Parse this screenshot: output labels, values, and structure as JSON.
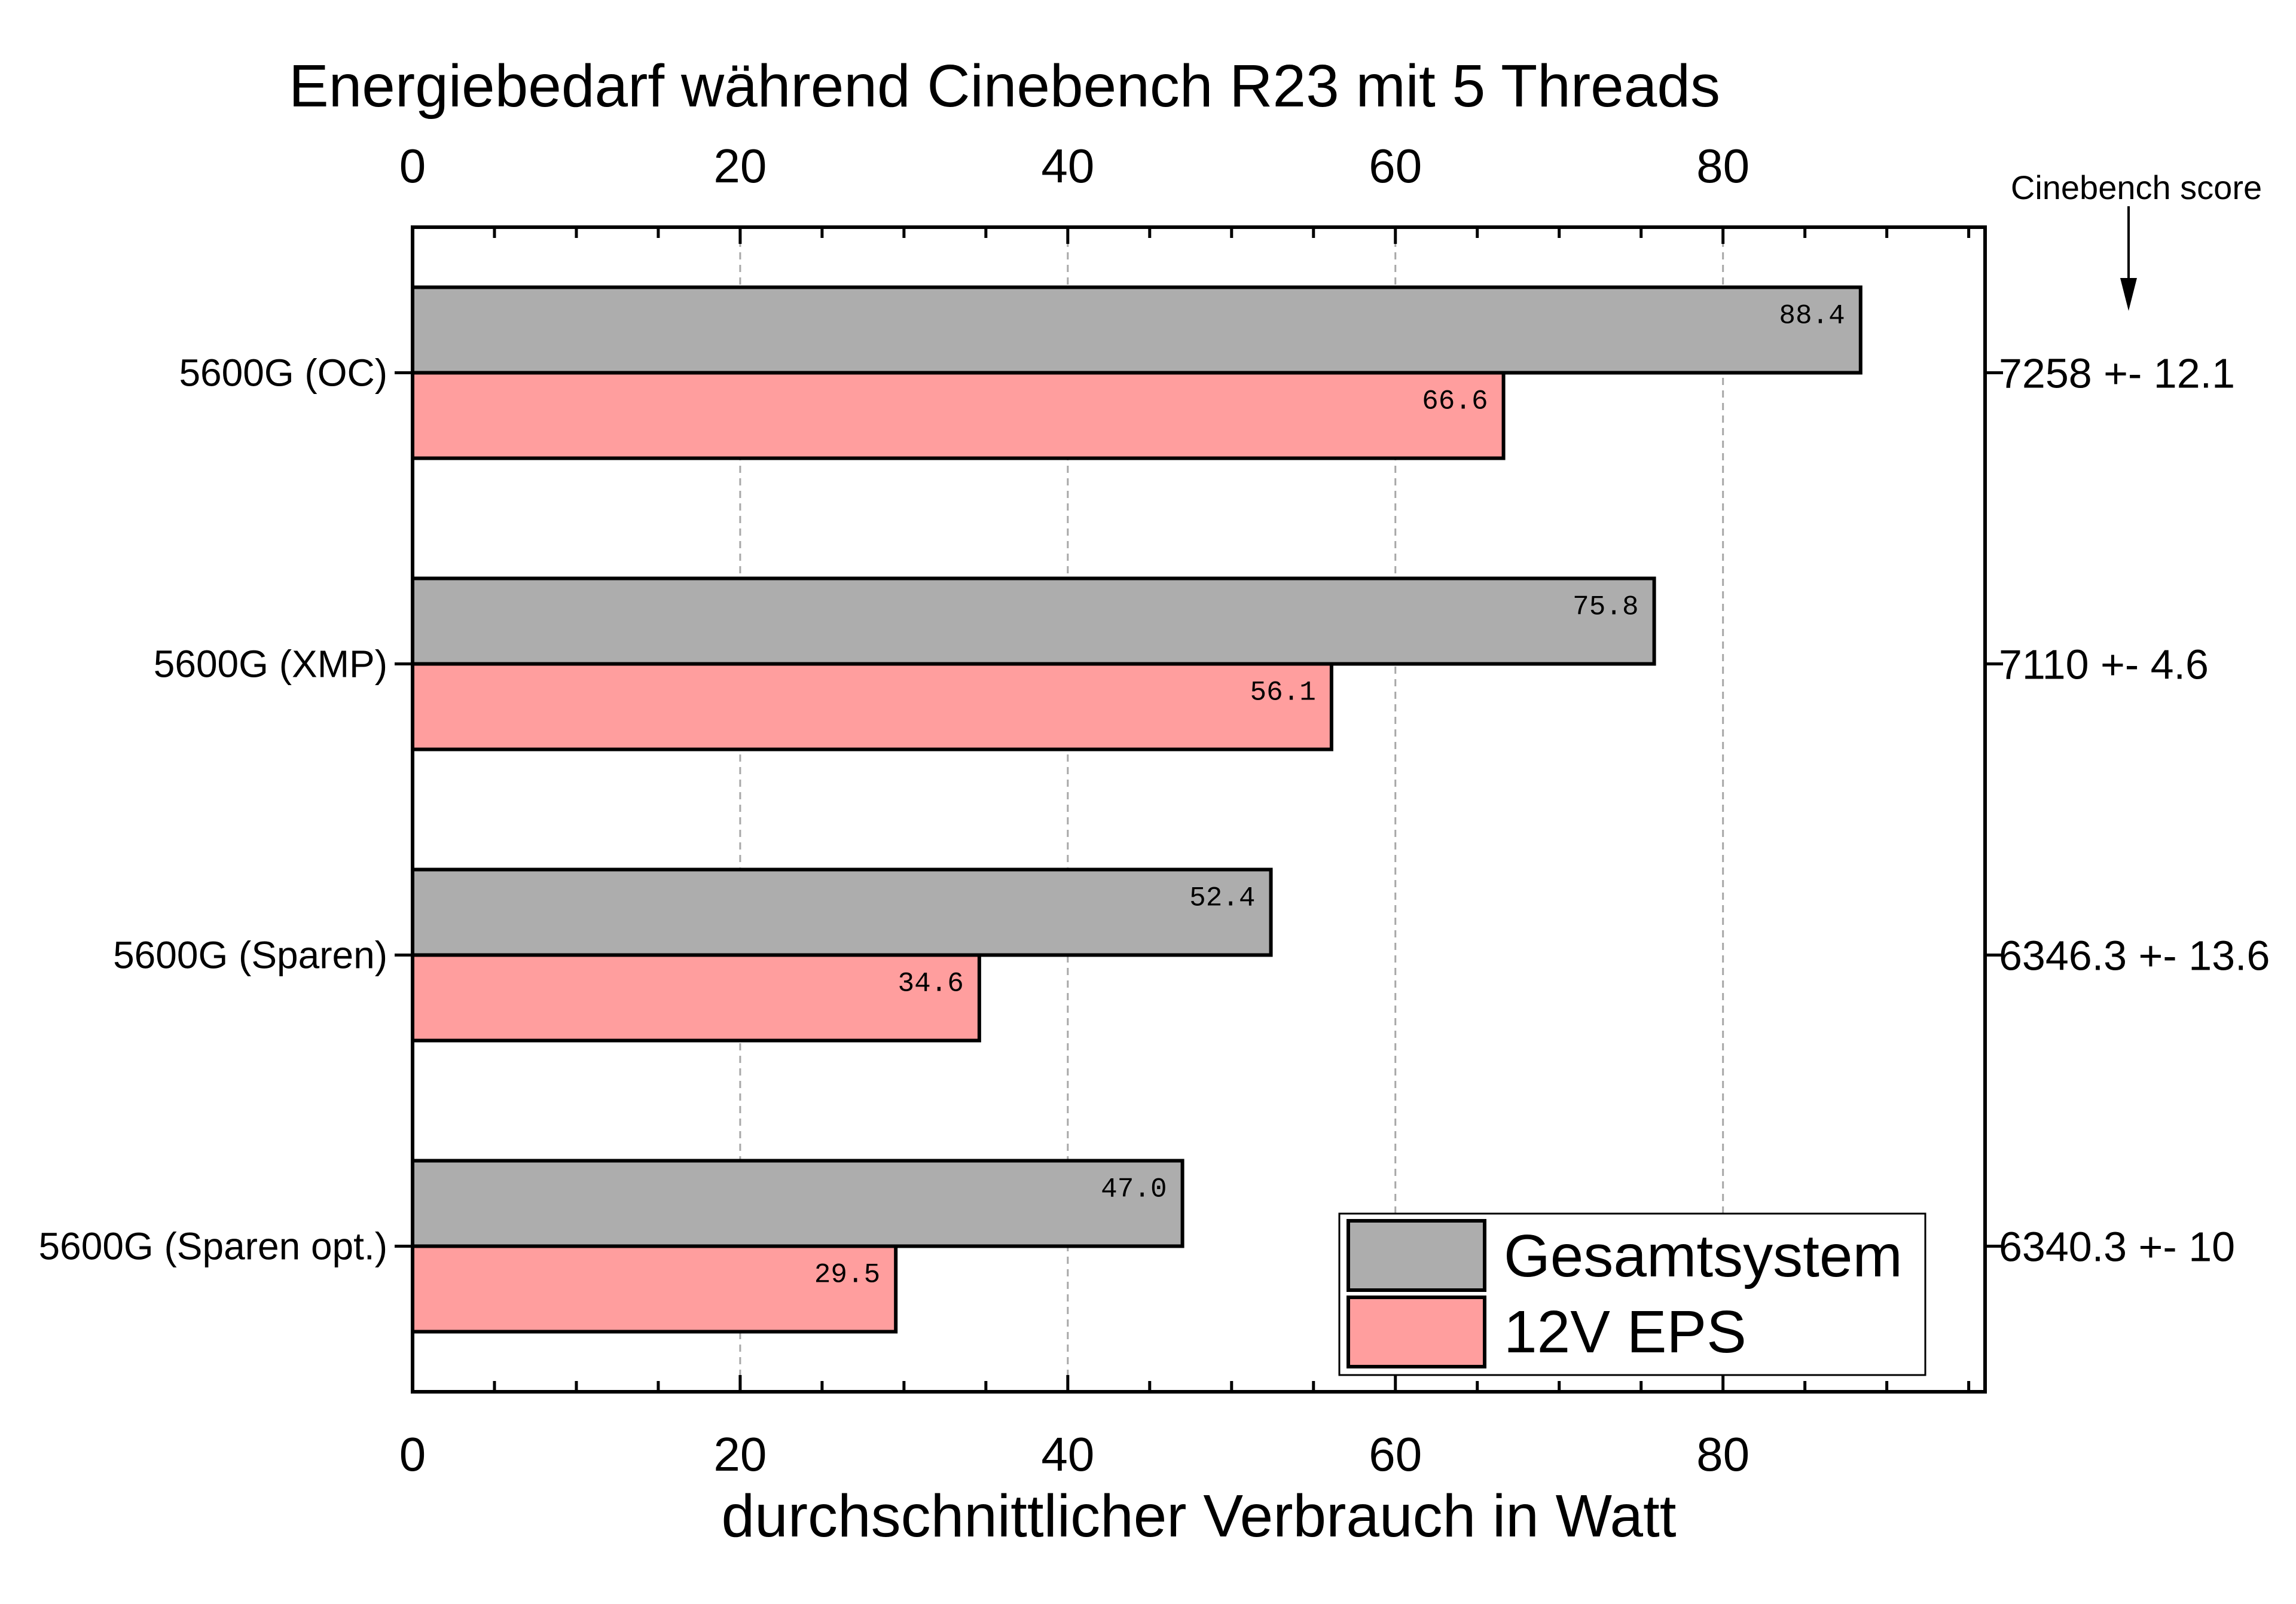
{
  "chart_data": {
    "type": "bar",
    "orientation": "horizontal",
    "title": "Energiebedarf während Cinebench R23 mit 5 Threads",
    "xlabel": "durchschnittlicher Verbrauch in Watt",
    "xlim": [
      0,
      96
    ],
    "xticks": [
      0,
      20,
      40,
      60,
      80
    ],
    "grid": true,
    "categories": [
      "5600G (OC)",
      "5600G (XMP)",
      "5600G (Sparen)",
      "5600G (Sparen opt.)"
    ],
    "series": [
      {
        "name": "Gesamtsystem",
        "color": "#adadad",
        "values": [
          88.4,
          75.8,
          52.4,
          47.0
        ],
        "labels": [
          "88.4",
          "75.8",
          "52.4",
          "47.0"
        ]
      },
      {
        "name": "12V EPS",
        "color": "#ff9e9e",
        "values": [
          66.6,
          56.1,
          34.6,
          29.5
        ],
        "labels": [
          "66.6",
          "56.1",
          "34.6",
          "29.5"
        ]
      }
    ],
    "secondary_axis": {
      "header": "Cinebench score",
      "labels": [
        "7258 +- 12.1",
        "7110 +- 4.6",
        "6346.3 +- 13.6",
        "6340.3 +- 10"
      ]
    },
    "legend_position": "bottom-right"
  }
}
